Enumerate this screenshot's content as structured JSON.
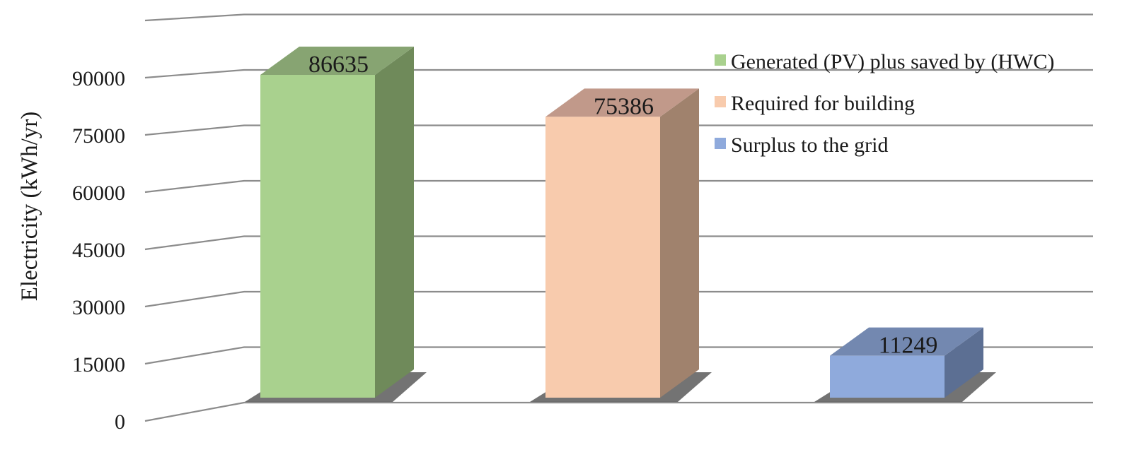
{
  "chart_data": {
    "type": "bar",
    "title": "",
    "xlabel": "",
    "ylabel": "Electricity (kWh/yr)",
    "ylim": [
      0,
      90000
    ],
    "yticks": [
      0,
      15000,
      30000,
      45000,
      60000,
      75000,
      90000
    ],
    "grid": true,
    "legend_position": "top-right",
    "categories": [
      "Generated (PV) plus saved by (HWC)",
      "Required for building",
      "Surplus to the grid"
    ],
    "values": [
      86635,
      75386,
      11249
    ],
    "data_labels": [
      "86635",
      "75386",
      "11249"
    ],
    "colors": [
      {
        "front": "#a9d18e",
        "side": "#6f8a5a",
        "top": "#87a472"
      },
      {
        "front": "#f8cbad",
        "side": "#a0826d",
        "top": "#c1998a"
      },
      {
        "front": "#8faadc",
        "side": "#5c6f93",
        "top": "#7388b0"
      }
    ]
  }
}
